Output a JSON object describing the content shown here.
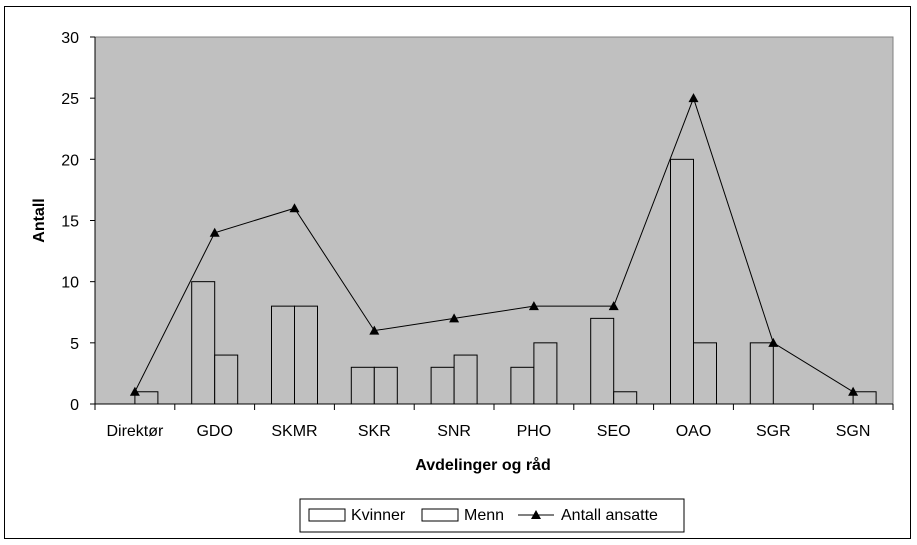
{
  "chart_data": {
    "type": "bar",
    "categories": [
      "Direktør",
      "GDO",
      "SKMR",
      "SKR",
      "SNR",
      "PHO",
      "SEO",
      "OAO",
      "SGR",
      "SGN"
    ],
    "series": [
      {
        "name": "Kvinner",
        "kind": "bar",
        "values": [
          0,
          10,
          8,
          3,
          3,
          3,
          7,
          20,
          5,
          0
        ]
      },
      {
        "name": "Menn",
        "kind": "bar",
        "values": [
          1,
          4,
          8,
          3,
          4,
          5,
          1,
          5,
          0,
          1
        ]
      },
      {
        "name": "Antall ansatte",
        "kind": "line",
        "marker": "triangle",
        "values": [
          1,
          14,
          16,
          6,
          7,
          8,
          8,
          25,
          5,
          1
        ]
      }
    ],
    "xlabel": "Avdelinger og råd",
    "ylabel": "Antall",
    "ylim": [
      0,
      30
    ],
    "yticks": [
      0,
      5,
      10,
      15,
      20,
      25,
      30
    ],
    "ytick_labels": [
      "0",
      "5",
      "10",
      "15",
      "20",
      "25",
      "30"
    ],
    "grid": false,
    "legend_position": "bottom",
    "colors": {
      "plot_background": "#c0c0c0",
      "bar_fill": "#c0c0c0",
      "bar_stroke": "#000000",
      "line": "#000000"
    }
  }
}
